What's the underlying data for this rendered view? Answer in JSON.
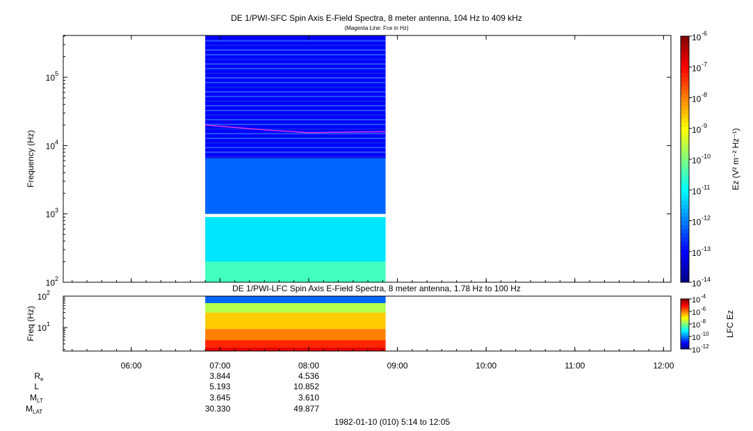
{
  "panel1": {
    "title": "DE 1/PWI-SFC  Spin Axis E-Field Spectra, 8 meter antenna, 104 Hz to 409 kHz",
    "subtitle": "(Magenta Line: Fce in Hz)",
    "ylabel": "Frequency (Hz)",
    "y_ticks": [
      "10",
      "10",
      "10",
      "10"
    ],
    "y_tick_exps": [
      "2",
      "3",
      "4",
      "5"
    ],
    "colorbar_label": "Ez (V² m⁻² Hz⁻¹)",
    "colorbar_ticks": [
      "-14",
      "-13",
      "-12",
      "-11",
      "-10",
      "-9",
      "-8",
      "-7",
      "-6"
    ]
  },
  "panel2": {
    "title": "DE 1/PWI-LFC  Spin Axis E-Field Spectra, 8 meter antenna, 1.78 Hz to 100 Hz",
    "ylabel": "Freq (Hz)",
    "y_tick_exps": [
      "1",
      "2"
    ],
    "colorbar_label": "LFC Ez",
    "colorbar_ticks": [
      "-12",
      "-10",
      "-8",
      "-6",
      "-4"
    ]
  },
  "x_ticks": [
    "06:00",
    "07:00",
    "08:00",
    "09:00",
    "10:00",
    "11:00",
    "12:00"
  ],
  "ephemeris": {
    "labels": [
      "R",
      "L",
      "M",
      "M"
    ],
    "label_subs": [
      "e",
      "",
      "LT",
      "LAT"
    ],
    "col1": [
      "3.844",
      "5.193",
      "3.645",
      "30.330"
    ],
    "col2": [
      "4.536",
      "10.852",
      "3.610",
      "49.877"
    ]
  },
  "footer": "1982-01-10 (010) 5:14 to 12:05",
  "chart_data": [
    {
      "type": "heatmap",
      "title": "DE 1/PWI-SFC  Spin Axis E-Field Spectra, 8 meter antenna, 104 Hz to 409 kHz",
      "subtitle": "(Magenta Line: Fce in Hz)",
      "xlabel": "",
      "ylabel": "Frequency (Hz)",
      "x_range": [
        "05:14",
        "12:05"
      ],
      "data_span": [
        "06:50",
        "08:52"
      ],
      "y_scale": "log",
      "ylim": [
        100,
        409000
      ],
      "colorbar_label": "Ez (V^2 m^-2 Hz^-1)",
      "colorbar_range": [
        1e-14,
        1e-06
      ],
      "bands": [
        {
          "freq_range": [
            100,
            200
          ],
          "log_level": -10.5
        },
        {
          "freq_range": [
            200,
            900
          ],
          "log_level": -11.2
        },
        {
          "freq_range": [
            1000,
            6500
          ],
          "log_level": -12.2
        },
        {
          "freq_range": [
            6500,
            409000
          ],
          "log_level": -13.0
        }
      ],
      "fce_line": {
        "color": "#dd33dd",
        "x": [
          "06:50",
          "07:30",
          "08:00",
          "08:52"
        ],
        "y": [
          20000,
          17000,
          15500,
          16000
        ]
      }
    },
    {
      "type": "heatmap",
      "title": "DE 1/PWI-LFC  Spin Axis E-Field Spectra, 8 meter antenna, 1.78 Hz to 100 Hz",
      "xlabel": "",
      "ylabel": "Freq (Hz)",
      "y_scale": "log",
      "ylim": [
        1.78,
        100
      ],
      "colorbar_label": "LFC Ez",
      "colorbar_range": [
        1e-12,
        0.0001
      ],
      "data_span": [
        "06:50",
        "08:52"
      ],
      "bands": [
        {
          "freq_range": [
            1.78,
            2.3
          ],
          "log_level": -4.8
        },
        {
          "freq_range": [
            2.3,
            4
          ],
          "log_level": -5.3
        },
        {
          "freq_range": [
            4,
            9
          ],
          "log_level": -6.0
        },
        {
          "freq_range": [
            9,
            30
          ],
          "log_level": -6.6
        },
        {
          "freq_range": [
            30,
            60
          ],
          "log_level": -7.6
        },
        {
          "freq_range": [
            60,
            100
          ],
          "log_level": -10.2
        }
      ]
    }
  ]
}
